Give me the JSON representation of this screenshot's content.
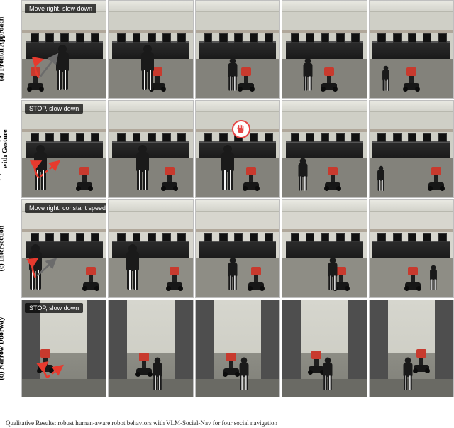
{
  "figure": {
    "rows": [
      {
        "key": "a",
        "label_paren": "(a)",
        "label_text": "Frontal Approach",
        "overlay": "Move right, slow down",
        "scene": "lab",
        "bg": {
          "floor": "#83827b",
          "wall": "#cfcfc6",
          "ceiling": "#e6e6df"
        },
        "frames": [
          {
            "person": {
              "x": 48,
              "scale": "large"
            },
            "robot": {
              "x": 16
            },
            "arrows": [
              {
                "type": "curve",
                "color": "#e63a2e",
                "dash": false,
                "from": [
                  20,
                  92
                ],
                "ctrl": [
                  10,
                  74
                ],
                "to": [
                  24,
                  70
                ]
              },
              {
                "type": "line",
                "color": "#6b6b6b",
                "dash": false,
                "from": [
                  22,
                  90
                ],
                "to": [
                  42,
                  64
                ]
              }
            ]
          },
          {
            "person": {
              "x": 46,
              "scale": "large"
            },
            "robot": {
              "x": 58
            }
          },
          {
            "person": {
              "x": 44,
              "scale": "small"
            },
            "robot": {
              "x": 60
            }
          },
          {
            "person": {
              "x": 30,
              "scale": "small"
            },
            "robot": {
              "x": 56
            }
          },
          {
            "person": {
              "x": 20,
              "scale": "tiny"
            },
            "robot": {
              "x": 50
            }
          }
        ]
      },
      {
        "key": "b",
        "label_paren": "(b)",
        "label_text": "Frontal Approach\nwith Gesture",
        "overlay": "STOP, slow down",
        "scene": "lab",
        "bg": {
          "floor": "#83827b",
          "wall": "#cfcfc6",
          "ceiling": "#e6e6df"
        },
        "frames": [
          {
            "person": {
              "x": 22,
              "scale": "large"
            },
            "robot": {
              "x": 74
            },
            "arrows": [
              {
                "type": "curve",
                "color": "#e63a2e",
                "dash": false,
                "from": [
                  20,
                  92
                ],
                "ctrl": [
                  10,
                  78
                ],
                "to": [
                  22,
                  72
                ]
              },
              {
                "type": "line",
                "color": "#e63a2e",
                "dash": true,
                "from": [
                  22,
                  90
                ],
                "to": [
                  44,
                  72
                ]
              }
            ]
          },
          {
            "person": {
              "x": 40,
              "scale": "large"
            },
            "robot": {
              "x": 72
            }
          },
          {
            "person": {
              "x": 38,
              "scale": "large"
            },
            "robot": {
              "x": 66
            },
            "stop_bubble": {
              "x": 54,
              "y": 30
            }
          },
          {
            "person": {
              "x": 24,
              "scale": "small"
            },
            "robot": {
              "x": 60
            }
          },
          {
            "person": {
              "x": 14,
              "scale": "tiny"
            },
            "robot": {
              "x": 80
            }
          }
        ]
      },
      {
        "key": "c",
        "label_paren": "(c)",
        "label_text": "Intersection",
        "overlay": "Move right, constant speed",
        "scene": "lab",
        "bg": {
          "floor": "#8e8d85",
          "wall": "#d7d6ce",
          "ceiling": "#ececE4"
        },
        "frames": [
          {
            "person": {
              "x": 16,
              "scale": "large"
            },
            "robot": {
              "x": 82
            },
            "arrows": [
              {
                "type": "curve",
                "color": "#e63a2e",
                "dash": false,
                "from": [
                  16,
                  92
                ],
                "ctrl": [
                  8,
                  76
                ],
                "to": [
                  18,
                  70
                ]
              },
              {
                "type": "line",
                "color": "#6b6b6b",
                "dash": false,
                "from": [
                  18,
                  90
                ],
                "to": [
                  40,
                  70
                ]
              }
            ]
          },
          {
            "person": {
              "x": 28,
              "scale": "large"
            },
            "robot": {
              "x": 78
            }
          },
          {
            "person": {
              "x": 44,
              "scale": "small"
            },
            "robot": {
              "x": 72
            }
          },
          {
            "person": {
              "x": 60,
              "scale": "small"
            },
            "robot": {
              "x": 70
            }
          },
          {
            "person": {
              "x": 76,
              "scale": "tiny"
            },
            "robot": {
              "x": 52
            }
          }
        ]
      },
      {
        "key": "d",
        "label_paren": "(d)",
        "label_text": "Narrow Doorway",
        "overlay": "STOP, slow down",
        "scene": "doorway",
        "bg": {
          "wall": "#4e4e4e",
          "opening_top": "#d6d6ce",
          "opening_bottom": "#7e7e77",
          "floor": "#6a6a64"
        },
        "frames": [
          {
            "person": null,
            "robot": {
              "x": 28,
              "y": 74
            },
            "arrows": [
              {
                "type": "curve",
                "color": "#e63a2e",
                "dash": false,
                "from": [
                  30,
                  92
                ],
                "ctrl": [
                  22,
                  80
                ],
                "to": [
                  30,
                  74
                ]
              },
              {
                "type": "line",
                "color": "#e63a2e",
                "dash": true,
                "from": [
                  30,
                  92
                ],
                "to": [
                  48,
                  78
                ]
              }
            ]
          },
          {
            "person": {
              "x": 58,
              "scale": "small"
            },
            "robot": {
              "x": 42,
              "y": 78
            }
          },
          {
            "person": {
              "x": 58,
              "scale": "small"
            },
            "robot": {
              "x": 42,
              "y": 78
            }
          },
          {
            "person": {
              "x": 54,
              "scale": "small"
            },
            "robot": {
              "x": 40,
              "y": 76
            }
          },
          {
            "person": {
              "x": 46,
              "scale": "small"
            },
            "robot": {
              "x": 62,
              "y": 74
            }
          }
        ]
      }
    ]
  },
  "annotation_colors": {
    "red": "#e63a2e",
    "gray": "#6b6b6b",
    "stop_border": "#e64545",
    "stop_fill": "#ffffff",
    "overlay_bg": "rgba(0,0,0,0.72)",
    "overlay_text": "#ffffff"
  },
  "caption_fragment": "Qualitative Results: robust human-aware robot behaviors with VLM-Social-Nav for four social navigation"
}
